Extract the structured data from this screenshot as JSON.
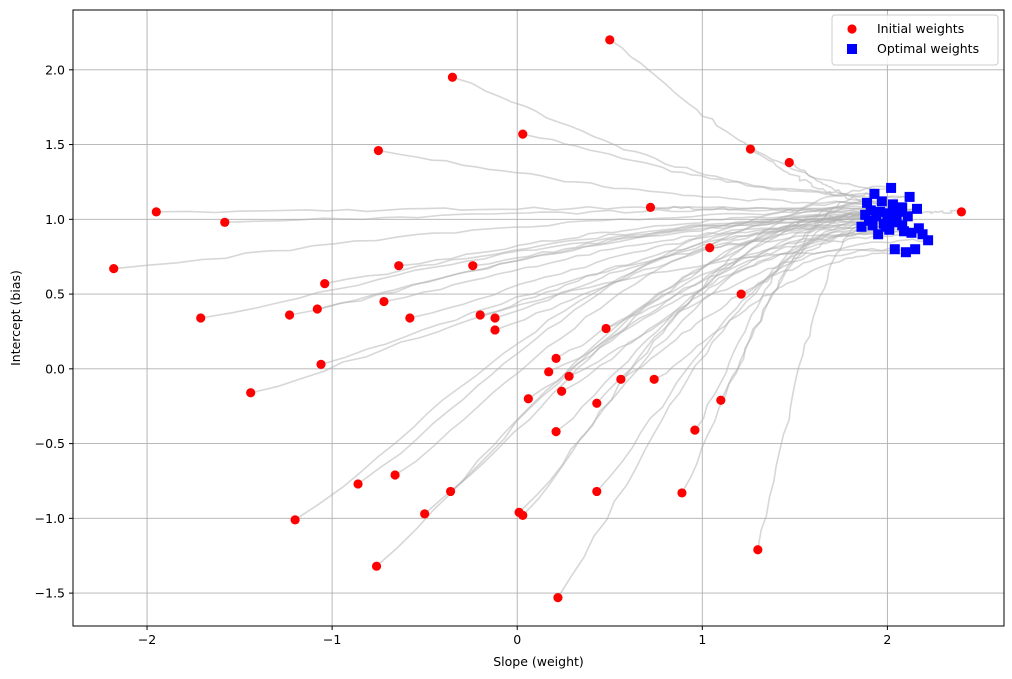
{
  "chart_data": {
    "type": "scatter",
    "title": "",
    "xlabel": "Slope (weight)",
    "ylabel": "Intercept (bias)",
    "xlim": [
      -2.4,
      2.63
    ],
    "ylim": [
      -1.72,
      2.4
    ],
    "xticks": [
      -2,
      -1,
      0,
      1,
      2
    ],
    "yticks": [
      -1.5,
      -1.0,
      -0.5,
      0.0,
      0.5,
      1.0,
      1.5,
      2.0
    ],
    "xtick_labels": [
      "−2",
      "−1",
      "0",
      "1",
      "2"
    ],
    "ytick_labels": [
      "−1.5",
      "−1.0",
      "−0.5",
      "0.0",
      "0.5",
      "1.0",
      "1.5",
      "2.0"
    ],
    "grid": true,
    "legend_position": "top-right",
    "colors": {
      "initial": "#ff0000",
      "optimal": "#0000ff",
      "path": "#b0b0b0",
      "grid": "#b0b0b0"
    },
    "series": [
      {
        "name": "Initial weights",
        "marker": "circle",
        "points": [
          [
            0.5,
            2.2
          ],
          [
            -0.35,
            1.95
          ],
          [
            0.03,
            1.57
          ],
          [
            -0.75,
            1.46
          ],
          [
            1.26,
            1.47
          ],
          [
            1.47,
            1.38
          ],
          [
            -1.95,
            1.05
          ],
          [
            -1.58,
            0.98
          ],
          [
            0.72,
            1.08
          ],
          [
            2.4,
            1.05
          ],
          [
            1.04,
            0.81
          ],
          [
            -2.18,
            0.67
          ],
          [
            -0.64,
            0.69
          ],
          [
            -0.24,
            0.69
          ],
          [
            -1.04,
            0.57
          ],
          [
            -1.71,
            0.34
          ],
          [
            -1.23,
            0.36
          ],
          [
            -1.08,
            0.4
          ],
          [
            -0.72,
            0.45
          ],
          [
            -0.58,
            0.34
          ],
          [
            -0.2,
            0.36
          ],
          [
            -0.12,
            0.34
          ],
          [
            -0.12,
            0.26
          ],
          [
            1.21,
            0.5
          ],
          [
            0.48,
            0.27
          ],
          [
            -1.06,
            0.03
          ],
          [
            0.21,
            0.07
          ],
          [
            0.17,
            -0.02
          ],
          [
            0.28,
            -0.05
          ],
          [
            0.56,
            -0.07
          ],
          [
            0.74,
            -0.07
          ],
          [
            -1.44,
            -0.16
          ],
          [
            0.24,
            -0.15
          ],
          [
            0.06,
            -0.2
          ],
          [
            0.43,
            -0.23
          ],
          [
            1.1,
            -0.21
          ],
          [
            0.21,
            -0.42
          ],
          [
            0.96,
            -0.41
          ],
          [
            -0.86,
            -0.77
          ],
          [
            -0.66,
            -0.71
          ],
          [
            -0.36,
            -0.82
          ],
          [
            0.43,
            -0.82
          ],
          [
            0.89,
            -0.83
          ],
          [
            -1.2,
            -1.01
          ],
          [
            -0.5,
            -0.97
          ],
          [
            0.01,
            -0.96
          ],
          [
            0.03,
            -0.98
          ],
          [
            1.3,
            -1.21
          ],
          [
            -0.76,
            -1.32
          ],
          [
            0.22,
            -1.53
          ]
        ]
      },
      {
        "name": "Optimal weights",
        "marker": "square",
        "points": [
          [
            2.02,
            1.21
          ],
          [
            1.93,
            1.17
          ],
          [
            2.12,
            1.15
          ],
          [
            1.89,
            1.11
          ],
          [
            1.97,
            1.12
          ],
          [
            2.03,
            1.1
          ],
          [
            2.08,
            1.08
          ],
          [
            2.16,
            1.07
          ],
          [
            1.91,
            1.06
          ],
          [
            1.96,
            1.05
          ],
          [
            2.01,
            1.04
          ],
          [
            2.06,
            1.05
          ],
          [
            1.88,
            1.03
          ],
          [
            1.94,
            1.02
          ],
          [
            2.0,
            1.01
          ],
          [
            2.05,
            1.0
          ],
          [
            2.11,
            1.02
          ],
          [
            1.9,
            0.99
          ],
          [
            1.98,
            0.97
          ],
          [
            2.04,
            0.98
          ],
          [
            1.86,
            0.95
          ],
          [
            1.92,
            0.96
          ],
          [
            1.99,
            0.95
          ],
          [
            2.08,
            0.96
          ],
          [
            2.17,
            0.94
          ],
          [
            2.13,
            0.91
          ],
          [
            1.95,
            0.9
          ],
          [
            2.19,
            0.9
          ],
          [
            2.22,
            0.86
          ],
          [
            2.04,
            0.8
          ],
          [
            2.1,
            0.78
          ],
          [
            2.15,
            0.8
          ],
          [
            2.09,
            0.92
          ],
          [
            2.01,
            0.93
          ]
        ]
      }
    ]
  }
}
